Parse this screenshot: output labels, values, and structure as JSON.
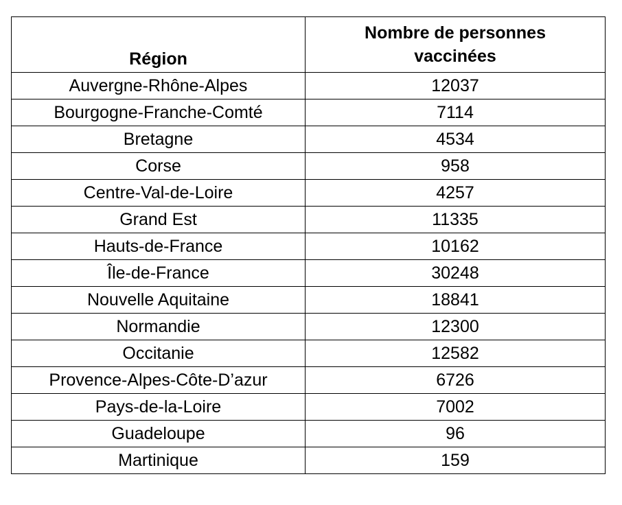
{
  "table": {
    "headers": {
      "region": "Région",
      "count_line1": "Nombre de personnes",
      "count_line2": "vaccinées"
    },
    "rows": [
      {
        "region": "Auvergne-Rhône-Alpes",
        "count": "12037"
      },
      {
        "region": "Bourgogne-Franche-Comté",
        "count": "7114"
      },
      {
        "region": "Bretagne",
        "count": "4534"
      },
      {
        "region": "Corse",
        "count": "958"
      },
      {
        "region": "Centre-Val-de-Loire",
        "count": "4257"
      },
      {
        "region": "Grand Est",
        "count": "11335"
      },
      {
        "region": "Hauts-de-France",
        "count": "10162"
      },
      {
        "region": "Île-de-France",
        "count": "30248"
      },
      {
        "region": "Nouvelle Aquitaine",
        "count": "18841"
      },
      {
        "region": "Normandie",
        "count": "12300"
      },
      {
        "region": "Occitanie",
        "count": "12582"
      },
      {
        "region": "Provence-Alpes-Côte-D’azur",
        "count": "6726"
      },
      {
        "region": "Pays-de-la-Loire",
        "count": "7002"
      },
      {
        "region": "Guadeloupe",
        "count": "96"
      },
      {
        "region": "Martinique",
        "count": "159"
      }
    ]
  }
}
